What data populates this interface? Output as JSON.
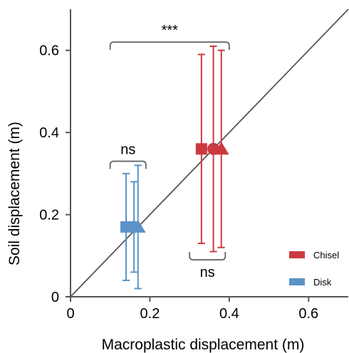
{
  "chart_data": {
    "type": "scatter",
    "title": "",
    "xlabel": "Macroplastic displacement (m)",
    "ylabel": "Soil displacement (m)",
    "xlim": [
      0,
      0.7
    ],
    "ylim": [
      0,
      0.7
    ],
    "xticks": [
      0,
      0.2,
      0.4,
      0.6
    ],
    "yticks": [
      0,
      0.2,
      0.4,
      0.6
    ],
    "xtick_labels": [
      "0",
      "0.2",
      "0.4",
      "0.6"
    ],
    "ytick_labels": [
      "0",
      "0.2",
      "0.4",
      "0.6"
    ],
    "grid": false,
    "reference_line": "y = x",
    "legend_position": "bottom-right",
    "series": [
      {
        "name": "Chisel",
        "color": "#cc3a3f",
        "points": [
          {
            "marker": "square",
            "x": 0.33,
            "y": 0.36,
            "y_low": 0.13,
            "y_high": 0.59
          },
          {
            "marker": "circle",
            "x": 0.36,
            "y": 0.36,
            "y_low": 0.11,
            "y_high": 0.61
          },
          {
            "marker": "triangle",
            "x": 0.38,
            "y": 0.36,
            "y_low": 0.12,
            "y_high": 0.6
          }
        ]
      },
      {
        "name": "Disk",
        "color": "#5b93c7",
        "points": [
          {
            "marker": "square",
            "x": 0.14,
            "y": 0.17,
            "y_low": 0.04,
            "y_high": 0.3
          },
          {
            "marker": "circle",
            "x": 0.16,
            "y": 0.17,
            "y_low": 0.06,
            "y_high": 0.28
          },
          {
            "marker": "triangle",
            "x": 0.17,
            "y": 0.17,
            "y_low": 0.02,
            "y_high": 0.32
          }
        ]
      }
    ],
    "annotations": [
      {
        "label": "***",
        "x_from": 0.1,
        "x_to": 0.4,
        "y": 0.62,
        "opening": "down",
        "text_side": "above"
      },
      {
        "label": "ns",
        "x_from": 0.1,
        "x_to": 0.19,
        "y": 0.33,
        "opening": "down",
        "text_side": "above"
      },
      {
        "label": "ns",
        "x_from": 0.3,
        "x_to": 0.39,
        "y": 0.09,
        "opening": "up",
        "text_side": "below"
      }
    ]
  }
}
